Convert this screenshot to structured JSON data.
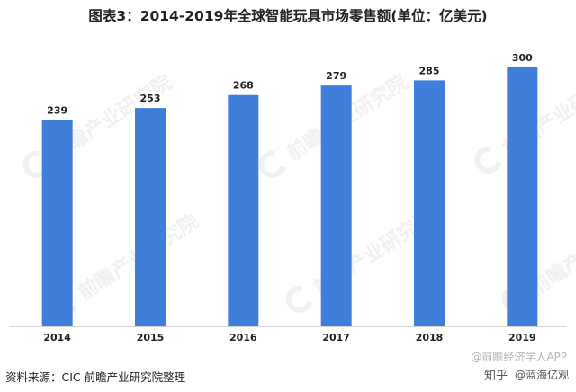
{
  "title": "图表3：2014-2019年全球智能玩具市场零售额(单位：亿美元)",
  "chart_data": {
    "type": "bar",
    "title": "图表3：2014-2019年全球智能玩具市场零售额(单位：亿美元)",
    "categories": [
      "2014",
      "2015",
      "2016",
      "2017",
      "2018",
      "2019"
    ],
    "values": [
      239,
      253,
      268,
      279,
      285,
      300
    ],
    "xlabel": "",
    "ylabel": "",
    "ylim": [
      0,
      320
    ],
    "grid": false,
    "legend": "none",
    "colors": {
      "bar": "#3f7fd9",
      "axis": "#d4d4d4",
      "label": "#222222"
    }
  },
  "watermark": {
    "text": "前瞻产业研究院"
  },
  "footer": {
    "source": "资料来源：CIC  前瞻产业研究院整理",
    "credit_prefix": "知乎",
    "credit_name": "@蓝海亿观",
    "app_name": "@前瞻经济学人APP"
  }
}
